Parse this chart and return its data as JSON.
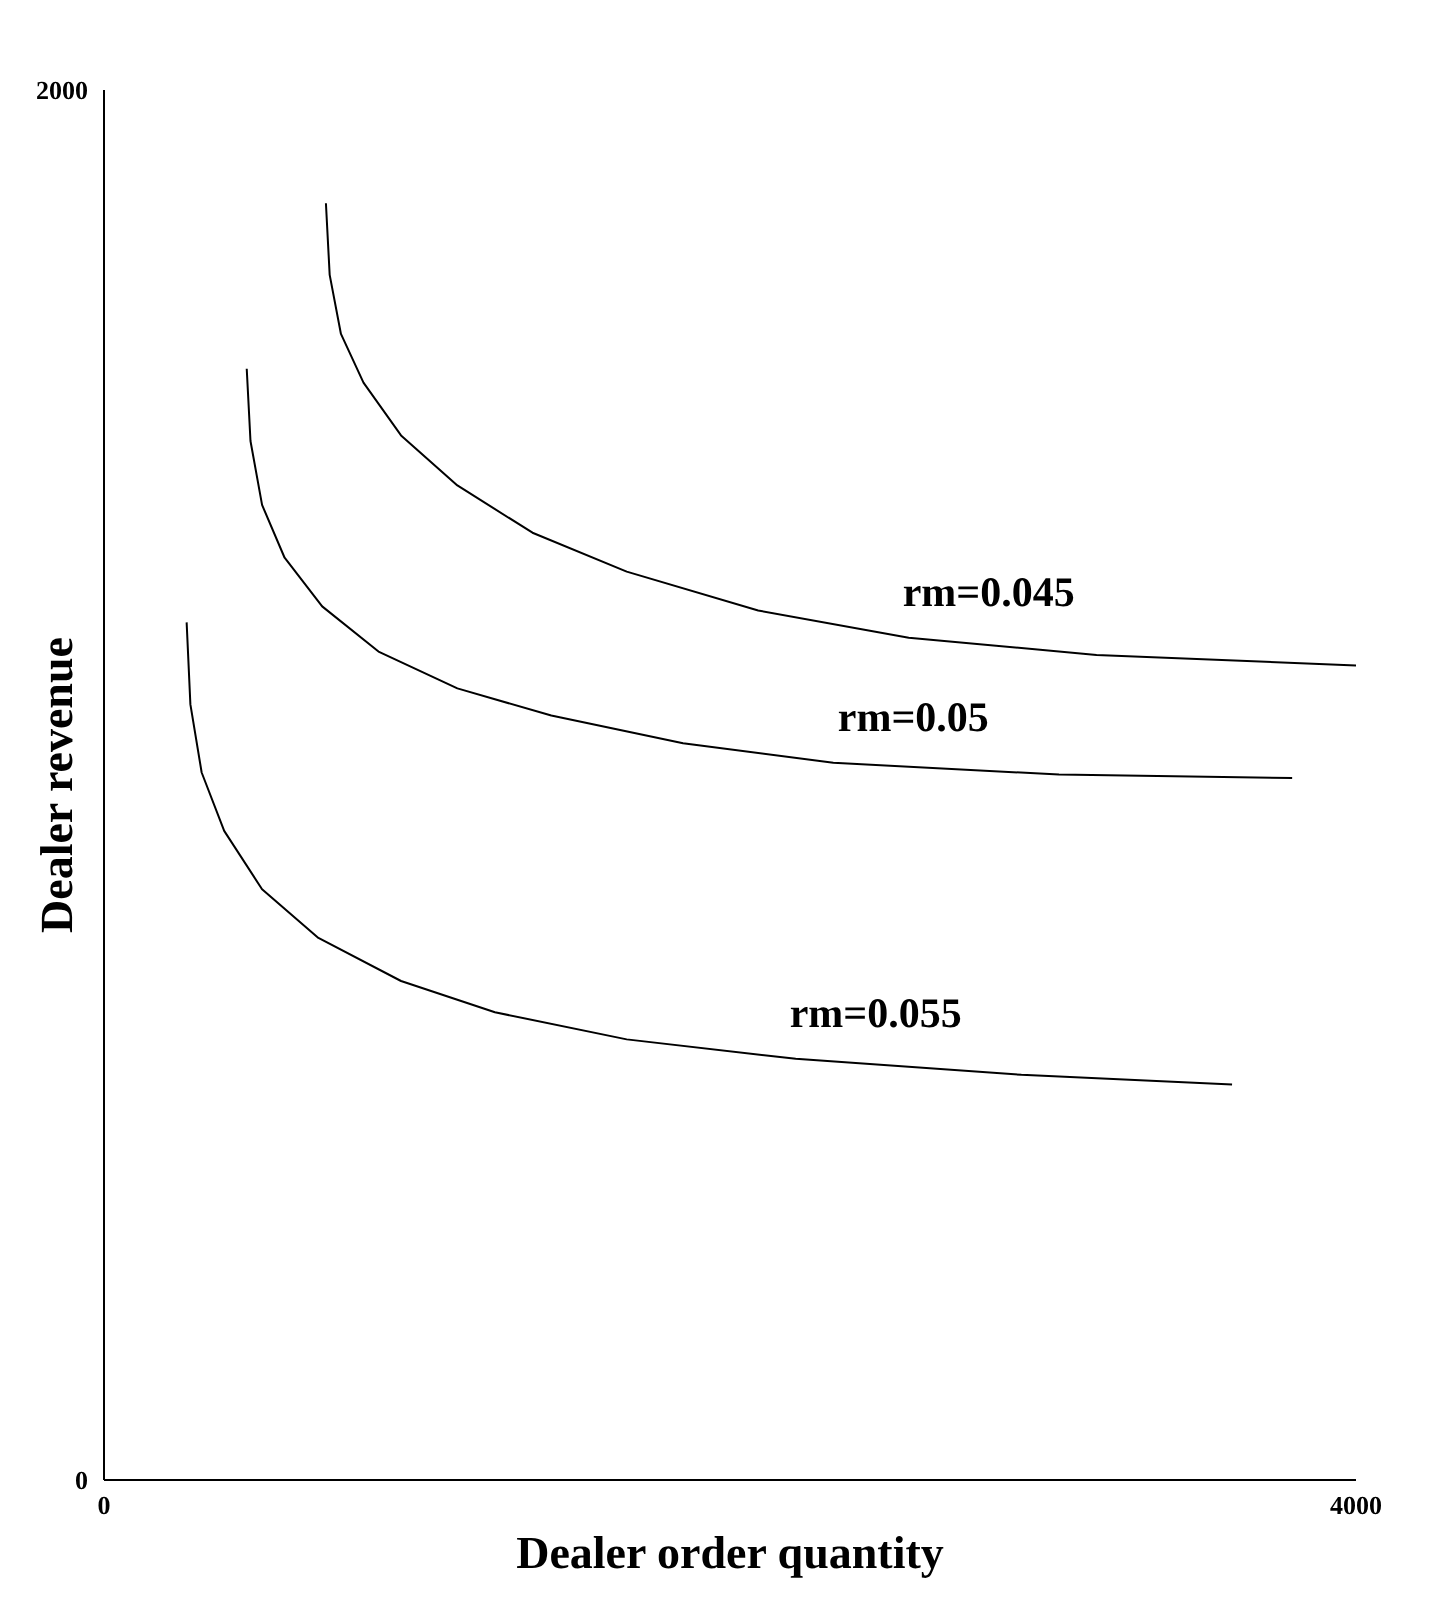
{
  "chart_data": {
    "type": "line",
    "xlabel": "Dealer order quantity",
    "ylabel": "Dealer revenue",
    "xlim": [
      0,
      4000
    ],
    "ylim": [
      0,
      2000
    ],
    "xticks": [
      0,
      4000
    ],
    "yticks": [
      0,
      2000
    ],
    "grid": false,
    "legend": false,
    "marker": "none",
    "line_style": "solid",
    "series": [
      {
        "name": "rm=0.045",
        "color": "#000000",
        "x": [
          709,
          721,
          757,
          829,
          949,
          1129,
          1369,
          1670,
          2090,
          2571,
          3171,
          4000
        ],
        "values": [
          1837,
          1734,
          1649,
          1579,
          1503,
          1431,
          1363,
          1307,
          1251,
          1212,
          1187,
          1172
        ]
      },
      {
        "name": "rm=0.05",
        "color": "#000000",
        "x": [
          456,
          468,
          505,
          577,
          697,
          877,
          1129,
          1429,
          1850,
          2330,
          3051,
          3796
        ],
        "values": [
          1599,
          1495,
          1403,
          1327,
          1257,
          1192,
          1139,
          1100,
          1060,
          1032,
          1015,
          1010
        ]
      },
      {
        "name": "rm=0.055",
        "color": "#000000",
        "x": [
          264,
          276,
          312,
          384,
          505,
          685,
          949,
          1249,
          1670,
          2210,
          2931,
          3604
        ],
        "values": [
          1234,
          1116,
          1018,
          934,
          850,
          780,
          718,
          673,
          634,
          606,
          583,
          569
        ]
      }
    ]
  }
}
